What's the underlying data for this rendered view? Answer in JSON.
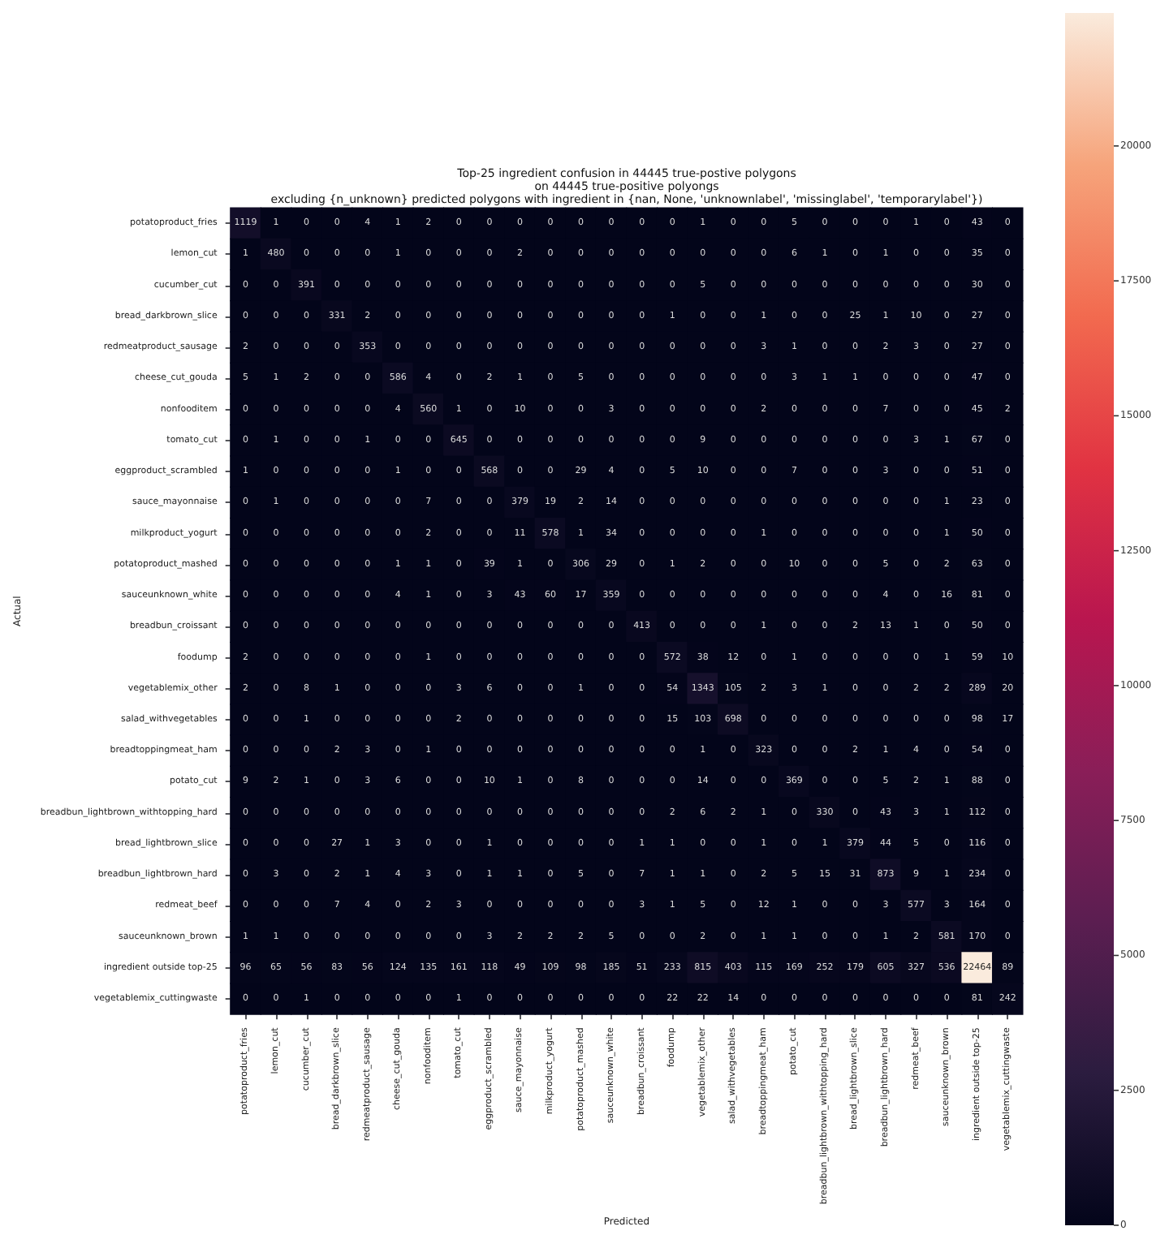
{
  "chart_data": {
    "type": "heatmap",
    "title": "Top-25 ingredient confusion in 44445 true-postive polygons\non 44445 true-positive polyongs\nexcluding {n_unknown} predicted polygons with ingredient in {nan, None, 'unknownlabel', 'missinglabel', 'temporarylabel'})",
    "xlabel": "Predicted",
    "ylabel": "Actual",
    "categories": [
      "potatoproduct_fries",
      "lemon_cut",
      "cucumber_cut",
      "bread_darkbrown_slice",
      "redmeatproduct_sausage",
      "cheese_cut_gouda",
      "nonfooditem",
      "tomato_cut",
      "eggproduct_scrambled",
      "sauce_mayonnaise",
      "milkproduct_yogurt",
      "potatoproduct_mashed",
      "sauceunknown_white",
      "breadbun_croissant",
      "foodump",
      "vegetablemix_other",
      "salad_withvegetables",
      "breadtoppingmeat_ham",
      "potato_cut",
      "breadbun_lightbrown_withtopping_hard",
      "bread_lightbrown_slice",
      "breadbun_lightbrown_hard",
      "redmeat_beef",
      "sauceunknown_brown",
      "ingredient outside top-25",
      "vegetablemix_cuttingwaste"
    ],
    "y_categories": [
      "potatoproduct_fries",
      "lemon_cut",
      "cucumber_cut",
      "bread_darkbrown_slice",
      "redmeatproduct_sausage",
      "cheese_cut_gouda",
      "nonfooditem",
      "tomato_cut",
      "eggproduct_scrambled",
      "sauce_mayonnaise",
      "milkproduct_yogurt",
      "potatoproduct_mashed",
      "sauceunknown_white",
      "breadbun_croissant",
      "foodump",
      "vegetablemix_other",
      "salad_withvegetables",
      "breadtoppingmeat_ham",
      "potato_cut",
      "breadbun_lightbrown_withtopping_hard",
      "bread_lightbrown_slice",
      "breadbun_lightbrown_hard",
      "redmeat_beef",
      "sauceunknown_brown",
      "ingredient outside top-25",
      "vegetablemix_cuttingwaste"
    ],
    "cells": [
      [
        1119,
        1,
        0,
        0,
        4,
        1,
        2,
        0,
        0,
        0,
        0,
        0,
        0,
        0,
        0,
        1,
        0,
        0,
        5,
        0,
        0,
        0,
        1,
        0,
        43,
        0
      ],
      [
        1,
        480,
        0,
        0,
        0,
        1,
        0,
        0,
        0,
        2,
        0,
        0,
        0,
        0,
        0,
        0,
        0,
        0,
        6,
        1,
        0,
        1,
        0,
        0,
        35,
        0
      ],
      [
        0,
        0,
        391,
        0,
        0,
        0,
        0,
        0,
        0,
        0,
        0,
        0,
        0,
        0,
        0,
        5,
        0,
        0,
        0,
        0,
        0,
        0,
        0,
        0,
        30,
        0
      ],
      [
        0,
        0,
        0,
        331,
        2,
        0,
        0,
        0,
        0,
        0,
        0,
        0,
        0,
        0,
        1,
        0,
        0,
        1,
        0,
        0,
        25,
        1,
        10,
        0,
        27,
        0
      ],
      [
        2,
        0,
        0,
        0,
        353,
        0,
        0,
        0,
        0,
        0,
        0,
        0,
        0,
        0,
        0,
        0,
        0,
        3,
        1,
        0,
        0,
        2,
        3,
        0,
        27,
        0
      ],
      [
        5,
        1,
        2,
        0,
        0,
        586,
        4,
        0,
        2,
        1,
        0,
        5,
        0,
        0,
        0,
        0,
        0,
        0,
        3,
        1,
        1,
        0,
        0,
        0,
        47,
        0
      ],
      [
        0,
        0,
        0,
        0,
        0,
        4,
        560,
        1,
        0,
        10,
        0,
        0,
        3,
        0,
        0,
        0,
        0,
        2,
        0,
        0,
        0,
        7,
        0,
        0,
        45,
        2
      ],
      [
        0,
        1,
        0,
        0,
        1,
        0,
        0,
        645,
        0,
        0,
        0,
        0,
        0,
        0,
        0,
        9,
        0,
        0,
        0,
        0,
        0,
        0,
        3,
        1,
        67,
        0
      ],
      [
        1,
        0,
        0,
        0,
        0,
        1,
        0,
        0,
        568,
        0,
        0,
        29,
        4,
        0,
        5,
        10,
        0,
        0,
        7,
        0,
        0,
        3,
        0,
        0,
        51,
        0
      ],
      [
        0,
        1,
        0,
        0,
        0,
        0,
        7,
        0,
        0,
        379,
        19,
        2,
        14,
        0,
        0,
        0,
        0,
        0,
        0,
        0,
        0,
        0,
        0,
        1,
        23,
        0
      ],
      [
        0,
        0,
        0,
        0,
        0,
        0,
        2,
        0,
        0,
        11,
        578,
        1,
        34,
        0,
        0,
        0,
        0,
        1,
        0,
        0,
        0,
        0,
        0,
        1,
        50,
        0
      ],
      [
        0,
        0,
        0,
        0,
        0,
        1,
        1,
        0,
        39,
        1,
        0,
        306,
        29,
        0,
        1,
        2,
        0,
        0,
        10,
        0,
        0,
        5,
        0,
        2,
        63,
        0
      ],
      [
        0,
        0,
        0,
        0,
        0,
        4,
        1,
        0,
        3,
        43,
        60,
        17,
        359,
        0,
        0,
        0,
        0,
        0,
        0,
        0,
        0,
        4,
        0,
        16,
        81,
        0
      ],
      [
        0,
        0,
        0,
        0,
        0,
        0,
        0,
        0,
        0,
        0,
        0,
        0,
        0,
        413,
        0,
        0,
        0,
        1,
        0,
        0,
        2,
        13,
        1,
        0,
        50,
        0
      ],
      [
        2,
        0,
        0,
        0,
        0,
        0,
        1,
        0,
        0,
        0,
        0,
        0,
        0,
        0,
        572,
        38,
        12,
        0,
        1,
        0,
        0,
        0,
        0,
        1,
        59,
        10
      ],
      [
        2,
        0,
        8,
        1,
        0,
        0,
        0,
        3,
        6,
        0,
        0,
        1,
        0,
        0,
        54,
        1343,
        105,
        2,
        3,
        1,
        0,
        0,
        2,
        2,
        289,
        20
      ],
      [
        0,
        0,
        1,
        0,
        0,
        0,
        0,
        2,
        0,
        0,
        0,
        0,
        0,
        0,
        15,
        103,
        698,
        0,
        0,
        0,
        0,
        0,
        0,
        0,
        98,
        17
      ],
      [
        0,
        0,
        0,
        2,
        3,
        0,
        1,
        0,
        0,
        0,
        0,
        0,
        0,
        0,
        0,
        1,
        0,
        323,
        0,
        0,
        2,
        1,
        4,
        0,
        54,
        0
      ],
      [
        9,
        2,
        1,
        0,
        3,
        6,
        0,
        0,
        10,
        1,
        0,
        8,
        0,
        0,
        0,
        14,
        0,
        0,
        369,
        0,
        0,
        5,
        2,
        1,
        88,
        0
      ],
      [
        0,
        0,
        0,
        0,
        0,
        0,
        0,
        0,
        0,
        0,
        0,
        0,
        0,
        0,
        2,
        6,
        2,
        1,
        0,
        330,
        0,
        43,
        3,
        1,
        112,
        0
      ],
      [
        0,
        0,
        0,
        27,
        1,
        3,
        0,
        0,
        1,
        0,
        0,
        0,
        0,
        1,
        1,
        0,
        0,
        1,
        0,
        1,
        379,
        44,
        5,
        0,
        116,
        0
      ],
      [
        0,
        3,
        0,
        2,
        1,
        4,
        3,
        0,
        1,
        1,
        0,
        5,
        0,
        7,
        1,
        1,
        0,
        2,
        5,
        15,
        31,
        873,
        9,
        1,
        234,
        0
      ],
      [
        0,
        0,
        0,
        7,
        4,
        0,
        2,
        3,
        0,
        0,
        0,
        0,
        0,
        3,
        1,
        5,
        0,
        12,
        1,
        0,
        0,
        3,
        577,
        3,
        164,
        0
      ],
      [
        1,
        1,
        0,
        0,
        0,
        0,
        0,
        0,
        3,
        2,
        2,
        2,
        5,
        0,
        0,
        2,
        0,
        1,
        1,
        0,
        0,
        1,
        2,
        581,
        170,
        0
      ],
      [
        96,
        65,
        56,
        83,
        56,
        124,
        135,
        161,
        118,
        49,
        109,
        98,
        185,
        51,
        233,
        815,
        403,
        115,
        169,
        252,
        179,
        605,
        327,
        536,
        22464,
        89
      ],
      [
        0,
        0,
        1,
        0,
        0,
        0,
        0,
        1,
        0,
        0,
        0,
        0,
        0,
        0,
        22,
        22,
        14,
        0,
        0,
        0,
        0,
        0,
        0,
        0,
        81,
        242
      ]
    ],
    "clim": [
      0,
      22464
    ],
    "cticks": [
      0,
      2500,
      5000,
      7500,
      10000,
      12500,
      15000,
      17500,
      20000
    ],
    "data_labels": true
  }
}
